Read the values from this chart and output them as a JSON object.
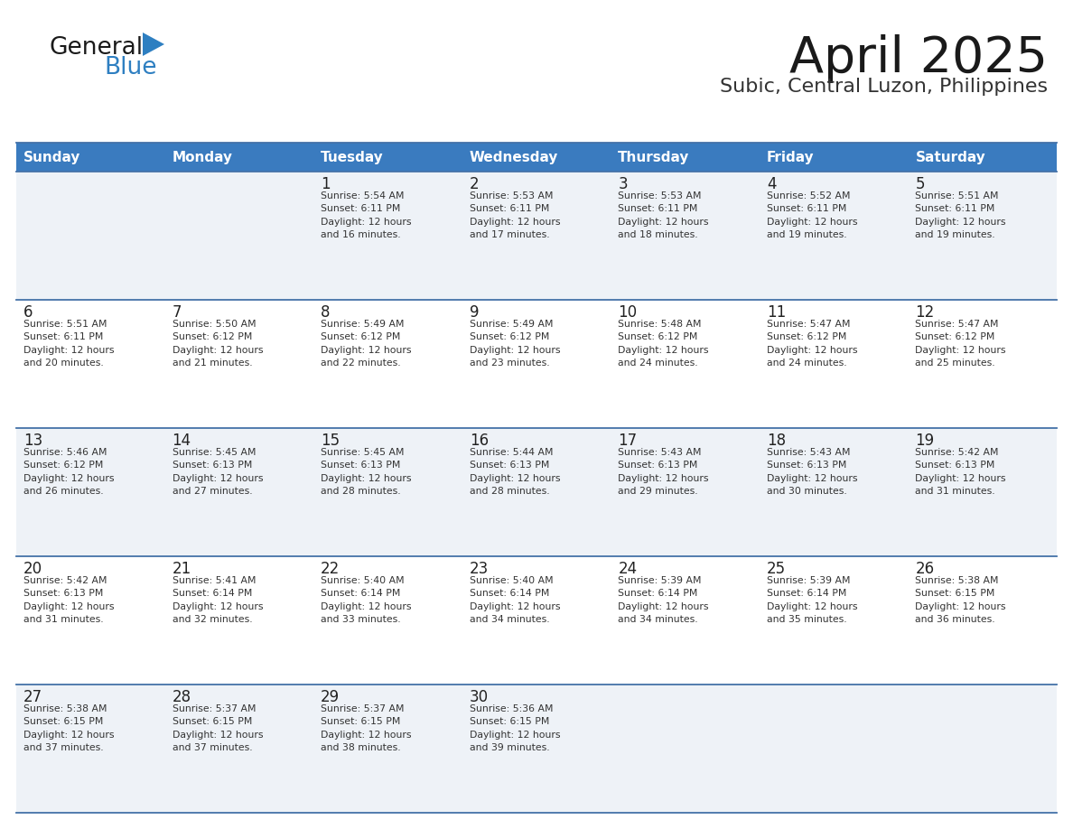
{
  "title": "April 2025",
  "subtitle": "Subic, Central Luzon, Philippines",
  "days_of_week": [
    "Sunday",
    "Monday",
    "Tuesday",
    "Wednesday",
    "Thursday",
    "Friday",
    "Saturday"
  ],
  "header_bg_color": "#3a7bbf",
  "header_text_color": "#ffffff",
  "row_bg_even": "#eef2f7",
  "row_bg_odd": "#ffffff",
  "grid_line_color": "#4472a8",
  "day_num_color": "#222222",
  "cell_text_color": "#333333",
  "title_color": "#1a1a1a",
  "subtitle_color": "#333333",
  "logo_general_color": "#1a1a1a",
  "logo_blue_color": "#2e7fc1",
  "logo_triangle_color": "#2e7fc1",
  "weeks": [
    [
      {
        "day": "",
        "sunrise": "",
        "sunset": "",
        "daylight": ""
      },
      {
        "day": "",
        "sunrise": "",
        "sunset": "",
        "daylight": ""
      },
      {
        "day": "1",
        "sunrise": "Sunrise: 5:54 AM",
        "sunset": "Sunset: 6:11 PM",
        "daylight": "Daylight: 12 hours\nand 16 minutes."
      },
      {
        "day": "2",
        "sunrise": "Sunrise: 5:53 AM",
        "sunset": "Sunset: 6:11 PM",
        "daylight": "Daylight: 12 hours\nand 17 minutes."
      },
      {
        "day": "3",
        "sunrise": "Sunrise: 5:53 AM",
        "sunset": "Sunset: 6:11 PM",
        "daylight": "Daylight: 12 hours\nand 18 minutes."
      },
      {
        "day": "4",
        "sunrise": "Sunrise: 5:52 AM",
        "sunset": "Sunset: 6:11 PM",
        "daylight": "Daylight: 12 hours\nand 19 minutes."
      },
      {
        "day": "5",
        "sunrise": "Sunrise: 5:51 AM",
        "sunset": "Sunset: 6:11 PM",
        "daylight": "Daylight: 12 hours\nand 19 minutes."
      }
    ],
    [
      {
        "day": "6",
        "sunrise": "Sunrise: 5:51 AM",
        "sunset": "Sunset: 6:11 PM",
        "daylight": "Daylight: 12 hours\nand 20 minutes."
      },
      {
        "day": "7",
        "sunrise": "Sunrise: 5:50 AM",
        "sunset": "Sunset: 6:12 PM",
        "daylight": "Daylight: 12 hours\nand 21 minutes."
      },
      {
        "day": "8",
        "sunrise": "Sunrise: 5:49 AM",
        "sunset": "Sunset: 6:12 PM",
        "daylight": "Daylight: 12 hours\nand 22 minutes."
      },
      {
        "day": "9",
        "sunrise": "Sunrise: 5:49 AM",
        "sunset": "Sunset: 6:12 PM",
        "daylight": "Daylight: 12 hours\nand 23 minutes."
      },
      {
        "day": "10",
        "sunrise": "Sunrise: 5:48 AM",
        "sunset": "Sunset: 6:12 PM",
        "daylight": "Daylight: 12 hours\nand 24 minutes."
      },
      {
        "day": "11",
        "sunrise": "Sunrise: 5:47 AM",
        "sunset": "Sunset: 6:12 PM",
        "daylight": "Daylight: 12 hours\nand 24 minutes."
      },
      {
        "day": "12",
        "sunrise": "Sunrise: 5:47 AM",
        "sunset": "Sunset: 6:12 PM",
        "daylight": "Daylight: 12 hours\nand 25 minutes."
      }
    ],
    [
      {
        "day": "13",
        "sunrise": "Sunrise: 5:46 AM",
        "sunset": "Sunset: 6:12 PM",
        "daylight": "Daylight: 12 hours\nand 26 minutes."
      },
      {
        "day": "14",
        "sunrise": "Sunrise: 5:45 AM",
        "sunset": "Sunset: 6:13 PM",
        "daylight": "Daylight: 12 hours\nand 27 minutes."
      },
      {
        "day": "15",
        "sunrise": "Sunrise: 5:45 AM",
        "sunset": "Sunset: 6:13 PM",
        "daylight": "Daylight: 12 hours\nand 28 minutes."
      },
      {
        "day": "16",
        "sunrise": "Sunrise: 5:44 AM",
        "sunset": "Sunset: 6:13 PM",
        "daylight": "Daylight: 12 hours\nand 28 minutes."
      },
      {
        "day": "17",
        "sunrise": "Sunrise: 5:43 AM",
        "sunset": "Sunset: 6:13 PM",
        "daylight": "Daylight: 12 hours\nand 29 minutes."
      },
      {
        "day": "18",
        "sunrise": "Sunrise: 5:43 AM",
        "sunset": "Sunset: 6:13 PM",
        "daylight": "Daylight: 12 hours\nand 30 minutes."
      },
      {
        "day": "19",
        "sunrise": "Sunrise: 5:42 AM",
        "sunset": "Sunset: 6:13 PM",
        "daylight": "Daylight: 12 hours\nand 31 minutes."
      }
    ],
    [
      {
        "day": "20",
        "sunrise": "Sunrise: 5:42 AM",
        "sunset": "Sunset: 6:13 PM",
        "daylight": "Daylight: 12 hours\nand 31 minutes."
      },
      {
        "day": "21",
        "sunrise": "Sunrise: 5:41 AM",
        "sunset": "Sunset: 6:14 PM",
        "daylight": "Daylight: 12 hours\nand 32 minutes."
      },
      {
        "day": "22",
        "sunrise": "Sunrise: 5:40 AM",
        "sunset": "Sunset: 6:14 PM",
        "daylight": "Daylight: 12 hours\nand 33 minutes."
      },
      {
        "day": "23",
        "sunrise": "Sunrise: 5:40 AM",
        "sunset": "Sunset: 6:14 PM",
        "daylight": "Daylight: 12 hours\nand 34 minutes."
      },
      {
        "day": "24",
        "sunrise": "Sunrise: 5:39 AM",
        "sunset": "Sunset: 6:14 PM",
        "daylight": "Daylight: 12 hours\nand 34 minutes."
      },
      {
        "day": "25",
        "sunrise": "Sunrise: 5:39 AM",
        "sunset": "Sunset: 6:14 PM",
        "daylight": "Daylight: 12 hours\nand 35 minutes."
      },
      {
        "day": "26",
        "sunrise": "Sunrise: 5:38 AM",
        "sunset": "Sunset: 6:15 PM",
        "daylight": "Daylight: 12 hours\nand 36 minutes."
      }
    ],
    [
      {
        "day": "27",
        "sunrise": "Sunrise: 5:38 AM",
        "sunset": "Sunset: 6:15 PM",
        "daylight": "Daylight: 12 hours\nand 37 minutes."
      },
      {
        "day": "28",
        "sunrise": "Sunrise: 5:37 AM",
        "sunset": "Sunset: 6:15 PM",
        "daylight": "Daylight: 12 hours\nand 37 minutes."
      },
      {
        "day": "29",
        "sunrise": "Sunrise: 5:37 AM",
        "sunset": "Sunset: 6:15 PM",
        "daylight": "Daylight: 12 hours\nand 38 minutes."
      },
      {
        "day": "30",
        "sunrise": "Sunrise: 5:36 AM",
        "sunset": "Sunset: 6:15 PM",
        "daylight": "Daylight: 12 hours\nand 39 minutes."
      },
      {
        "day": "",
        "sunrise": "",
        "sunset": "",
        "daylight": ""
      },
      {
        "day": "",
        "sunrise": "",
        "sunset": "",
        "daylight": ""
      },
      {
        "day": "",
        "sunrise": "",
        "sunset": "",
        "daylight": ""
      }
    ]
  ]
}
